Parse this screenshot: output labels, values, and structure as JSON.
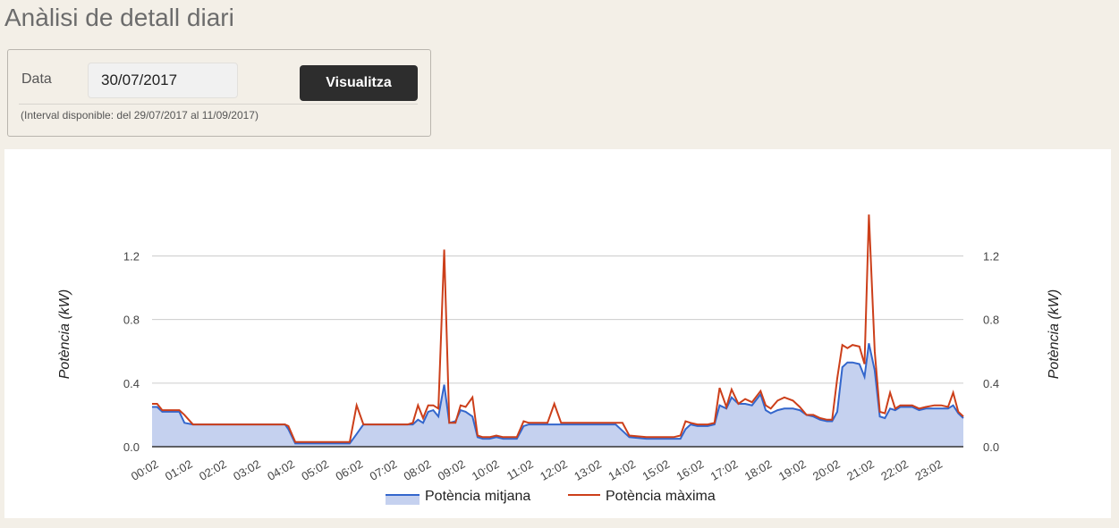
{
  "page": {
    "title": "Anàlisi de detall diari"
  },
  "filter": {
    "date_label": "Data",
    "date_value": "30/07/2017",
    "button_label": "Visualitza",
    "interval_note": "(Interval disponible: del 29/07/2017 al 11/09/2017)"
  },
  "chart_data": {
    "type": "area",
    "ylabel": "Potència (kW)",
    "ylabel_right": "Potència (kW)",
    "ylim": [
      0,
      1.45
    ],
    "yticks": [
      "0.0",
      "0.4",
      "0.8",
      "1.2"
    ],
    "grid": true,
    "legend_position": "bottom",
    "xticks": [
      "00:02",
      "01:02",
      "02:02",
      "03:02",
      "04:02",
      "05:02",
      "06:02",
      "07:02",
      "08:02",
      "09:02",
      "10:02",
      "11:02",
      "12:02",
      "13:02",
      "14:02",
      "15:02",
      "16:02",
      "17:02",
      "18:02",
      "19:02",
      "20:02",
      "21:02",
      "22:02",
      "23:02"
    ],
    "x_start": 0.0,
    "x_end": 23.8,
    "series": [
      {
        "name": "Potència mitjana",
        "color": "#3366cc",
        "fill": "#c5d1ef",
        "points": [
          [
            0.0,
            0.25
          ],
          [
            0.15,
            0.25
          ],
          [
            0.3,
            0.22
          ],
          [
            0.6,
            0.22
          ],
          [
            0.8,
            0.22
          ],
          [
            0.95,
            0.15
          ],
          [
            1.2,
            0.14
          ],
          [
            2.0,
            0.14
          ],
          [
            3.0,
            0.14
          ],
          [
            3.9,
            0.14
          ],
          [
            4.0,
            0.11
          ],
          [
            4.2,
            0.02
          ],
          [
            4.6,
            0.02
          ],
          [
            5.0,
            0.02
          ],
          [
            5.5,
            0.02
          ],
          [
            5.8,
            0.02
          ],
          [
            6.0,
            0.08
          ],
          [
            6.2,
            0.14
          ],
          [
            6.6,
            0.14
          ],
          [
            7.0,
            0.14
          ],
          [
            7.5,
            0.14
          ],
          [
            7.65,
            0.14
          ],
          [
            7.8,
            0.17
          ],
          [
            7.95,
            0.15
          ],
          [
            8.1,
            0.22
          ],
          [
            8.25,
            0.23
          ],
          [
            8.4,
            0.19
          ],
          [
            8.57,
            0.39
          ],
          [
            8.72,
            0.15
          ],
          [
            8.9,
            0.16
          ],
          [
            9.05,
            0.23
          ],
          [
            9.2,
            0.22
          ],
          [
            9.4,
            0.19
          ],
          [
            9.55,
            0.06
          ],
          [
            9.7,
            0.05
          ],
          [
            9.9,
            0.05
          ],
          [
            10.1,
            0.06
          ],
          [
            10.3,
            0.05
          ],
          [
            10.5,
            0.05
          ],
          [
            10.7,
            0.05
          ],
          [
            10.9,
            0.13
          ],
          [
            11.05,
            0.14
          ],
          [
            11.2,
            0.14
          ],
          [
            11.4,
            0.14
          ],
          [
            11.6,
            0.14
          ],
          [
            11.8,
            0.14
          ],
          [
            12.0,
            0.14
          ],
          [
            12.3,
            0.14
          ],
          [
            12.6,
            0.14
          ],
          [
            12.9,
            0.14
          ],
          [
            13.3,
            0.14
          ],
          [
            13.6,
            0.14
          ],
          [
            13.8,
            0.1
          ],
          [
            14.0,
            0.06
          ],
          [
            14.5,
            0.05
          ],
          [
            15.0,
            0.05
          ],
          [
            15.3,
            0.05
          ],
          [
            15.5,
            0.05
          ],
          [
            15.65,
            0.11
          ],
          [
            15.8,
            0.14
          ],
          [
            16.0,
            0.13
          ],
          [
            16.3,
            0.13
          ],
          [
            16.5,
            0.14
          ],
          [
            16.65,
            0.26
          ],
          [
            16.85,
            0.24
          ],
          [
            17.0,
            0.31
          ],
          [
            17.2,
            0.27
          ],
          [
            17.4,
            0.27
          ],
          [
            17.6,
            0.26
          ],
          [
            17.85,
            0.33
          ],
          [
            18.0,
            0.23
          ],
          [
            18.15,
            0.21
          ],
          [
            18.35,
            0.23
          ],
          [
            18.55,
            0.24
          ],
          [
            18.8,
            0.24
          ],
          [
            19.0,
            0.23
          ],
          [
            19.2,
            0.2
          ],
          [
            19.4,
            0.19
          ],
          [
            19.6,
            0.17
          ],
          [
            19.8,
            0.16
          ],
          [
            19.95,
            0.16
          ],
          [
            20.1,
            0.22
          ],
          [
            20.25,
            0.5
          ],
          [
            20.4,
            0.53
          ],
          [
            20.55,
            0.53
          ],
          [
            20.75,
            0.52
          ],
          [
            20.9,
            0.44
          ],
          [
            21.03,
            0.65
          ],
          [
            21.2,
            0.48
          ],
          [
            21.35,
            0.19
          ],
          [
            21.5,
            0.18
          ],
          [
            21.65,
            0.24
          ],
          [
            21.8,
            0.23
          ],
          [
            21.95,
            0.25
          ],
          [
            22.1,
            0.25
          ],
          [
            22.3,
            0.25
          ],
          [
            22.5,
            0.23
          ],
          [
            22.7,
            0.24
          ],
          [
            22.95,
            0.24
          ],
          [
            23.15,
            0.24
          ],
          [
            23.35,
            0.24
          ],
          [
            23.5,
            0.26
          ],
          [
            23.65,
            0.21
          ],
          [
            23.8,
            0.18
          ]
        ]
      },
      {
        "name": "Potència màxima",
        "color": "#cc3f1a",
        "points": [
          [
            0.0,
            0.27
          ],
          [
            0.15,
            0.27
          ],
          [
            0.3,
            0.23
          ],
          [
            0.6,
            0.23
          ],
          [
            0.8,
            0.23
          ],
          [
            0.95,
            0.2
          ],
          [
            1.2,
            0.14
          ],
          [
            2.0,
            0.14
          ],
          [
            3.0,
            0.14
          ],
          [
            3.9,
            0.14
          ],
          [
            4.0,
            0.13
          ],
          [
            4.2,
            0.03
          ],
          [
            4.6,
            0.03
          ],
          [
            5.0,
            0.03
          ],
          [
            5.5,
            0.03
          ],
          [
            5.8,
            0.03
          ],
          [
            6.0,
            0.26
          ],
          [
            6.2,
            0.14
          ],
          [
            6.6,
            0.14
          ],
          [
            7.0,
            0.14
          ],
          [
            7.5,
            0.14
          ],
          [
            7.65,
            0.15
          ],
          [
            7.8,
            0.26
          ],
          [
            7.95,
            0.18
          ],
          [
            8.1,
            0.26
          ],
          [
            8.25,
            0.26
          ],
          [
            8.4,
            0.24
          ],
          [
            8.57,
            1.24
          ],
          [
            8.72,
            0.15
          ],
          [
            8.9,
            0.15
          ],
          [
            9.05,
            0.26
          ],
          [
            9.2,
            0.25
          ],
          [
            9.4,
            0.31
          ],
          [
            9.55,
            0.07
          ],
          [
            9.7,
            0.06
          ],
          [
            9.9,
            0.06
          ],
          [
            10.1,
            0.07
          ],
          [
            10.3,
            0.06
          ],
          [
            10.5,
            0.06
          ],
          [
            10.7,
            0.06
          ],
          [
            10.9,
            0.16
          ],
          [
            11.05,
            0.15
          ],
          [
            11.2,
            0.15
          ],
          [
            11.4,
            0.15
          ],
          [
            11.6,
            0.15
          ],
          [
            11.8,
            0.27
          ],
          [
            12.0,
            0.15
          ],
          [
            12.3,
            0.15
          ],
          [
            12.6,
            0.15
          ],
          [
            12.9,
            0.15
          ],
          [
            13.3,
            0.15
          ],
          [
            13.6,
            0.15
          ],
          [
            13.8,
            0.15
          ],
          [
            14.0,
            0.07
          ],
          [
            14.5,
            0.06
          ],
          [
            15.0,
            0.06
          ],
          [
            15.3,
            0.06
          ],
          [
            15.5,
            0.07
          ],
          [
            15.65,
            0.16
          ],
          [
            15.8,
            0.15
          ],
          [
            16.0,
            0.14
          ],
          [
            16.3,
            0.14
          ],
          [
            16.5,
            0.15
          ],
          [
            16.65,
            0.37
          ],
          [
            16.85,
            0.25
          ],
          [
            17.0,
            0.36
          ],
          [
            17.2,
            0.27
          ],
          [
            17.4,
            0.3
          ],
          [
            17.6,
            0.28
          ],
          [
            17.85,
            0.35
          ],
          [
            18.0,
            0.26
          ],
          [
            18.15,
            0.24
          ],
          [
            18.35,
            0.29
          ],
          [
            18.55,
            0.31
          ],
          [
            18.8,
            0.29
          ],
          [
            19.0,
            0.25
          ],
          [
            19.2,
            0.2
          ],
          [
            19.4,
            0.2
          ],
          [
            19.6,
            0.18
          ],
          [
            19.8,
            0.17
          ],
          [
            19.95,
            0.17
          ],
          [
            20.1,
            0.43
          ],
          [
            20.25,
            0.64
          ],
          [
            20.4,
            0.62
          ],
          [
            20.55,
            0.64
          ],
          [
            20.75,
            0.63
          ],
          [
            20.9,
            0.52
          ],
          [
            21.03,
            1.46
          ],
          [
            21.2,
            0.6
          ],
          [
            21.35,
            0.22
          ],
          [
            21.5,
            0.21
          ],
          [
            21.65,
            0.34
          ],
          [
            21.8,
            0.24
          ],
          [
            21.95,
            0.26
          ],
          [
            22.1,
            0.26
          ],
          [
            22.3,
            0.26
          ],
          [
            22.5,
            0.24
          ],
          [
            22.7,
            0.25
          ],
          [
            22.95,
            0.26
          ],
          [
            23.15,
            0.26
          ],
          [
            23.35,
            0.25
          ],
          [
            23.5,
            0.34
          ],
          [
            23.65,
            0.22
          ],
          [
            23.8,
            0.19
          ]
        ]
      }
    ]
  }
}
